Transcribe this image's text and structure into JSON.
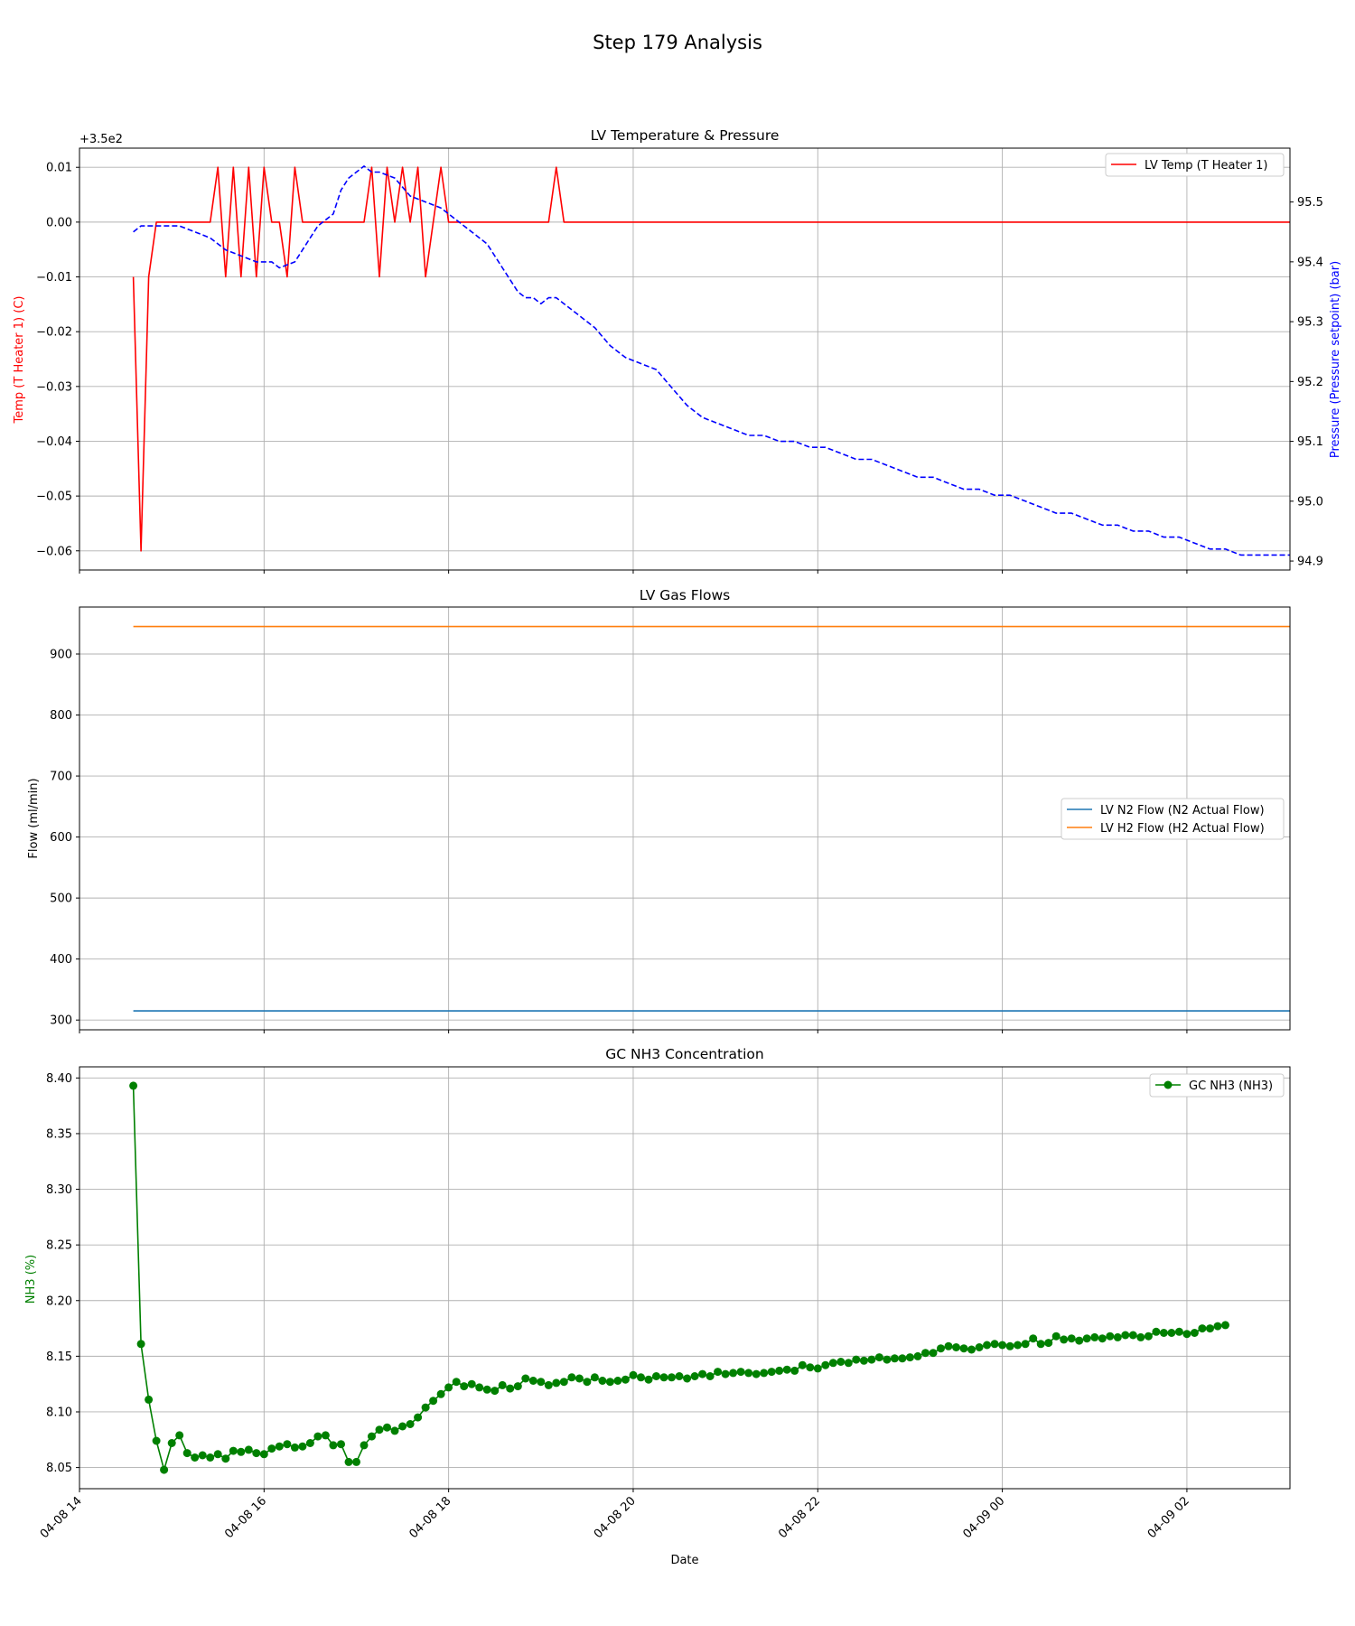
{
  "suptitle": "Step 179 Analysis",
  "shared_x": {
    "label": "Date",
    "ticks": [
      "04-08 14",
      "04-08 16",
      "04-08 18",
      "04-08 20",
      "04-08 22",
      "04-09 00",
      "04-09 02"
    ],
    "range": [
      "04-08 14:00",
      "04-09 03:07"
    ]
  },
  "chart_data": [
    {
      "type": "line",
      "title": "LV Temperature & Pressure",
      "ylabel": "Temp (T Heater 1) (C)",
      "ylabel_color": "#ff0000",
      "offset_text": "+3.5e2",
      "yticks": [
        "0.01",
        "0.00",
        "−0.01",
        "−0.02",
        "−0.03",
        "−0.04",
        "−0.05",
        "−0.06"
      ],
      "ylim": [
        -0.0635,
        0.0135
      ],
      "y2label": "Pressure (Pressure setpoint) (bar)",
      "y2label_color": "#0000ff",
      "y2ticks": [
        "95.5",
        "95.4",
        "95.3",
        "95.2",
        "95.1",
        "95.0",
        "94.9"
      ],
      "y2lim": [
        94.885,
        95.59
      ],
      "grid": true,
      "legend": {
        "position": "upper right",
        "entries": [
          "LV Temp (T Heater 1)"
        ]
      },
      "series": [
        {
          "name": "LV Temp (T Heater 1)",
          "axis": "left",
          "color": "#ff0000",
          "style": "solid",
          "x": [
            "04-08 14:35",
            "04-08 14:40",
            "04-08 14:45",
            "04-08 14:50",
            "04-08 15:25",
            "04-08 15:30",
            "04-08 15:35",
            "04-08 15:40",
            "04-08 15:45",
            "04-08 15:50",
            "04-08 15:55",
            "04-08 16:00",
            "04-08 16:05",
            "04-08 16:10",
            "04-08 16:15",
            "04-08 16:20",
            "04-08 16:25",
            "04-08 16:30",
            "04-08 16:35",
            "04-08 17:05",
            "04-08 17:10",
            "04-08 17:15",
            "04-08 17:20",
            "04-08 17:25",
            "04-08 17:30",
            "04-08 17:35",
            "04-08 17:40",
            "04-08 17:45",
            "04-08 17:50",
            "04-08 17:55",
            "04-08 18:00",
            "04-08 18:05",
            "04-08 18:10",
            "04-08 18:15",
            "04-08 18:20",
            "04-08 18:25",
            "04-08 18:30",
            "04-08 18:35",
            "04-08 18:40",
            "04-08 18:45",
            "04-08 18:50",
            "04-08 18:55",
            "04-08 19:00",
            "04-08 19:05",
            "04-08 19:10",
            "04-08 19:15",
            "04-08 19:20",
            "04-09 03:07"
          ],
          "values": [
            349.99,
            349.94,
            349.99,
            350.0,
            350.0,
            350.01,
            349.99,
            350.01,
            349.99,
            350.01,
            349.99,
            350.01,
            350.0,
            350.0,
            349.99,
            350.01,
            350.0,
            350.0,
            350.0,
            350.0,
            350.01,
            349.99,
            350.01,
            350.0,
            350.01,
            350.0,
            350.01,
            349.99,
            350.0,
            350.01,
            350.0,
            350.0,
            350.0,
            350.0,
            350.0,
            350.0,
            350.0,
            350.0,
            350.0,
            350.0,
            350.0,
            350.0,
            350.0,
            350.0,
            350.01,
            350.0,
            350.0,
            350.0
          ]
        },
        {
          "name": "",
          "axis": "right",
          "color": "#0000ff",
          "style": "dashed",
          "x": [
            "04-08 14:35",
            "04-08 14:40",
            "04-08 14:50",
            "04-08 15:05",
            "04-08 15:15",
            "04-08 15:25",
            "04-08 15:35",
            "04-08 15:45",
            "04-08 15:55",
            "04-08 16:05",
            "04-08 16:10",
            "04-08 16:20",
            "04-08 16:25",
            "04-08 16:35",
            "04-08 16:45",
            "04-08 16:50",
            "04-08 16:55",
            "04-08 17:00",
            "04-08 17:05",
            "04-08 17:10",
            "04-08 17:15",
            "04-08 17:25",
            "04-08 17:35",
            "04-08 17:45",
            "04-08 17:55",
            "04-08 18:05",
            "04-08 18:15",
            "04-08 18:25",
            "04-08 18:35",
            "04-08 18:45",
            "04-08 18:50",
            "04-08 18:55",
            "04-08 19:00",
            "04-08 19:05",
            "04-08 19:10",
            "04-08 19:15",
            "04-08 19:25",
            "04-08 19:35",
            "04-08 19:45",
            "04-08 19:55",
            "04-08 20:05",
            "04-08 20:15",
            "04-08 20:25",
            "04-08 20:35",
            "04-08 20:45",
            "04-08 20:55",
            "04-08 21:05",
            "04-08 21:15",
            "04-08 21:25",
            "04-08 21:35",
            "04-08 21:45",
            "04-08 21:55",
            "04-08 22:05",
            "04-08 22:15",
            "04-08 22:25",
            "04-08 22:35",
            "04-08 22:45",
            "04-08 22:55",
            "04-08 23:05",
            "04-08 23:15",
            "04-08 23:25",
            "04-08 23:35",
            "04-08 23:45",
            "04-08 23:55",
            "04-09 00:05",
            "04-09 00:15",
            "04-09 00:25",
            "04-09 00:35",
            "04-09 00:45",
            "04-09 00:55",
            "04-09 01:05",
            "04-09 01:15",
            "04-09 01:25",
            "04-09 01:35",
            "04-09 01:45",
            "04-09 01:55",
            "04-09 02:05",
            "04-09 02:15",
            "04-09 02:25",
            "04-09 02:35",
            "04-09 02:45",
            "04-09 02:55",
            "04-09 03:07"
          ],
          "values": [
            95.45,
            95.46,
            95.46,
            95.46,
            95.45,
            95.44,
            95.42,
            95.41,
            95.4,
            95.4,
            95.39,
            95.4,
            95.42,
            95.46,
            95.48,
            95.52,
            95.54,
            95.55,
            95.56,
            95.55,
            95.55,
            95.54,
            95.51,
            95.5,
            95.49,
            95.47,
            95.45,
            95.43,
            95.39,
            95.35,
            95.34,
            95.34,
            95.33,
            95.34,
            95.34,
            95.33,
            95.31,
            95.29,
            95.26,
            95.24,
            95.23,
            95.22,
            95.19,
            95.16,
            95.14,
            95.13,
            95.12,
            95.11,
            95.11,
            95.1,
            95.1,
            95.09,
            95.09,
            95.08,
            95.07,
            95.07,
            95.06,
            95.05,
            95.04,
            95.04,
            95.03,
            95.02,
            95.02,
            95.01,
            95.01,
            95.0,
            94.99,
            94.98,
            94.98,
            94.97,
            94.96,
            94.96,
            94.95,
            94.95,
            94.94,
            94.94,
            94.93,
            94.92,
            94.92,
            94.91,
            94.91,
            94.91,
            94.91
          ]
        }
      ]
    },
    {
      "type": "line",
      "title": "LV Gas Flows",
      "ylabel": "Flow (ml/min)",
      "yticks": [
        "900",
        "800",
        "700",
        "600",
        "500",
        "400",
        "300"
      ],
      "ylim": [
        284,
        977
      ],
      "grid": true,
      "legend": {
        "position": "center right",
        "entries": [
          "LV N2 Flow (N2 Actual Flow)",
          "LV H2 Flow (H2 Actual Flow)"
        ]
      },
      "series": [
        {
          "name": "LV N2 Flow (N2 Actual Flow)",
          "color": "#1f77b4",
          "x": [
            "04-08 14:35",
            "04-09 03:07"
          ],
          "values": [
            315,
            315
          ]
        },
        {
          "name": "LV H2 Flow (H2 Actual Flow)",
          "color": "#ff7f0e",
          "x": [
            "04-08 14:35",
            "04-09 03:07"
          ],
          "values": [
            945,
            945
          ]
        }
      ]
    },
    {
      "type": "line",
      "title": "GC NH3 Concentration",
      "ylabel": "NH3 (%)",
      "ylabel_color": "#008000",
      "yticks": [
        "8.40",
        "8.35",
        "8.30",
        "8.25",
        "8.20",
        "8.15",
        "8.10",
        "8.05"
      ],
      "ylim": [
        8.031,
        8.41
      ],
      "grid": true,
      "legend": {
        "position": "upper right",
        "entries": [
          "GC NH3 (NH3)"
        ]
      },
      "series": [
        {
          "name": "GC NH3 (NH3)",
          "color": "#008000",
          "marker": "circle",
          "x_start": "04-08 14:35",
          "x_step_minutes": 5,
          "values": [
            8.393,
            8.161,
            8.111,
            8.074,
            8.048,
            8.072,
            8.079,
            8.063,
            8.059,
            8.061,
            8.059,
            8.062,
            8.058,
            8.065,
            8.064,
            8.066,
            8.063,
            8.062,
            8.067,
            8.069,
            8.071,
            8.068,
            8.069,
            8.072,
            8.078,
            8.079,
            8.07,
            8.071,
            8.055,
            8.055,
            8.07,
            8.078,
            8.084,
            8.086,
            8.083,
            8.087,
            8.089,
            8.095,
            8.104,
            8.11,
            8.116,
            8.122,
            8.127,
            8.123,
            8.125,
            8.122,
            8.12,
            8.119,
            8.124,
            8.121,
            8.123,
            8.13,
            8.128,
            8.127,
            8.124,
            8.126,
            8.127,
            8.131,
            8.13,
            8.127,
            8.131,
            8.128,
            8.127,
            8.128,
            8.129,
            8.133,
            8.131,
            8.129,
            8.132,
            8.131,
            8.131,
            8.132,
            8.13,
            8.132,
            8.134,
            8.132,
            8.136,
            8.134,
            8.135,
            8.136,
            8.135,
            8.134,
            8.135,
            8.136,
            8.137,
            8.138,
            8.137,
            8.142,
            8.14,
            8.139,
            8.142,
            8.144,
            8.145,
            8.144,
            8.147,
            8.146,
            8.147,
            8.149,
            8.147,
            8.148,
            8.148,
            8.149,
            8.15,
            8.153,
            8.153,
            8.157,
            8.159,
            8.158,
            8.157,
            8.156,
            8.158,
            8.16,
            8.161,
            8.16,
            8.159,
            8.16,
            8.161,
            8.166,
            8.161,
            8.162,
            8.168,
            8.165,
            8.166,
            8.164,
            8.166,
            8.167,
            8.166,
            8.168,
            8.167,
            8.169,
            8.169,
            8.167,
            8.168,
            8.172,
            8.171,
            8.171,
            8.172,
            8.17,
            8.171,
            8.175,
            8.175,
            8.177,
            8.178
          ]
        }
      ]
    }
  ]
}
